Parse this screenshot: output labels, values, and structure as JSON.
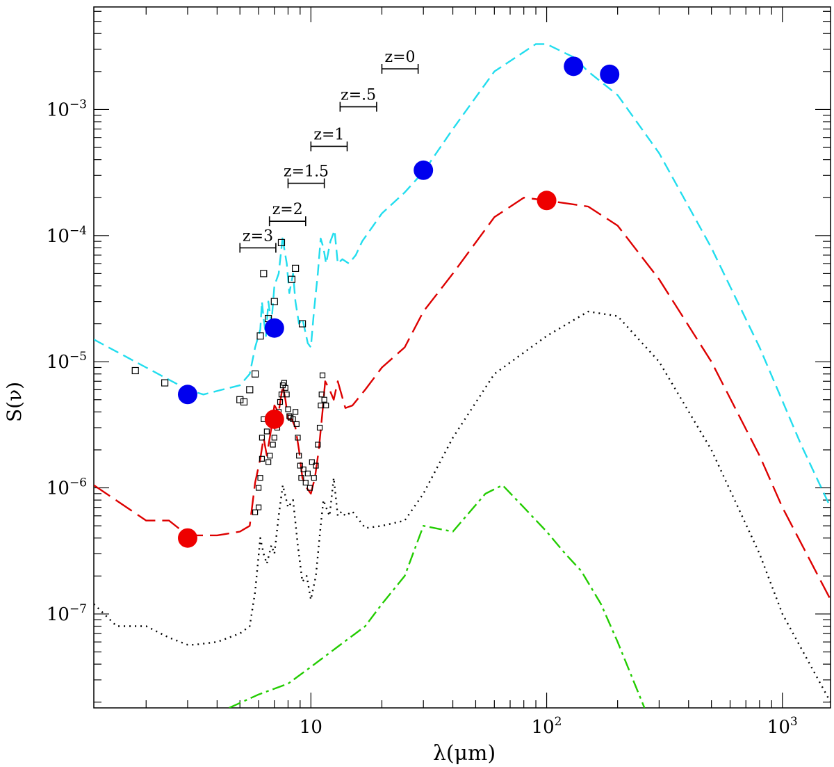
{
  "chart_data": {
    "type": "line",
    "x_scale": "log",
    "y_scale": "log",
    "xlim": [
      1.2,
      1600
    ],
    "ylim": [
      1.8e-08,
      0.0065
    ],
    "xlabel": "λ(μm)",
    "ylabel": "S(ν)",
    "x_ticks": [
      {
        "value": 10,
        "base": "10",
        "exp": ""
      },
      {
        "value": 100,
        "base": "10",
        "exp": "2"
      },
      {
        "value": 1000,
        "base": "10",
        "exp": "3"
      }
    ],
    "y_ticks": [
      {
        "value": 1e-07,
        "base": "10",
        "exp": "−7"
      },
      {
        "value": 1e-06,
        "base": "10",
        "exp": "−6"
      },
      {
        "value": 1e-05,
        "base": "10",
        "exp": "−5"
      },
      {
        "value": 0.0001,
        "base": "10",
        "exp": "−4"
      },
      {
        "value": 0.001,
        "base": "10",
        "exp": "−3"
      }
    ],
    "series": [
      {
        "name": "cyan-dashed-model",
        "color": "#22ddee",
        "dash": "16,8",
        "x": [
          1.2,
          2,
          3,
          3.5,
          4.2,
          5,
          5.5,
          5.8,
          6.1,
          6.2,
          6.3,
          6.45,
          6.6,
          6.8,
          7.0,
          7.3,
          7.6,
          7.7,
          7.9,
          8.1,
          8.4,
          8.6,
          8.9,
          9.2,
          9.7,
          10.0,
          10.3,
          10.7,
          11.0,
          11.3,
          11.6,
          12.1,
          12.6,
          13.0,
          13.6,
          14.5,
          15.5,
          16.5,
          20,
          25,
          30,
          40,
          60,
          90,
          100,
          130,
          150,
          200,
          300,
          500,
          800,
          1200,
          1600
        ],
        "values": [
          1.5e-05,
          9e-06,
          6e-06,
          5.5e-06,
          6e-06,
          6.5e-06,
          8e-06,
          1.3e-05,
          1.8e-05,
          3e-05,
          2.2e-05,
          1.6e-05,
          3e-05,
          2e-05,
          4e-05,
          5e-05,
          0.0001,
          8e-05,
          6e-05,
          3.5e-05,
          5e-05,
          3e-05,
          2e-05,
          2.2e-05,
          1.4e-05,
          1.3e-05,
          2.5e-05,
          5e-05,
          9.5e-05,
          8e-05,
          6e-05,
          9e-05,
          0.00011,
          6e-05,
          6.5e-05,
          6e-05,
          7e-05,
          9e-05,
          0.00015,
          0.00022,
          0.00032,
          0.0007,
          0.002,
          0.0033,
          0.0033,
          0.0026,
          0.002,
          0.0013,
          0.00045,
          8e-05,
          1.3e-05,
          2.2e-06,
          7e-07
        ]
      },
      {
        "name": "red-long-dash-model",
        "color": "#dd0000",
        "dash": "28,10",
        "x": [
          1.2,
          2,
          2.5,
          3,
          4,
          5,
          5.5,
          5.8,
          6.1,
          6.3,
          6.5,
          6.8,
          7.0,
          7.3,
          7.6,
          7.8,
          8.0,
          8.3,
          8.6,
          8.9,
          9.2,
          9.6,
          10.0,
          10.4,
          10.8,
          11.2,
          11.5,
          12.0,
          12.5,
          13.0,
          14,
          15,
          17,
          20,
          25,
          30,
          40,
          60,
          80,
          100,
          150,
          200,
          300,
          500,
          800,
          1000,
          1600
        ],
        "values": [
          1.05e-06,
          5.5e-07,
          5.5e-07,
          4.2e-07,
          4.2e-07,
          4.5e-07,
          5e-07,
          1.1e-06,
          1.7e-06,
          2.5e-06,
          1.8e-06,
          3e-06,
          4.5e-06,
          4e-06,
          6.5e-06,
          5e-06,
          3.5e-06,
          3.5e-06,
          3e-06,
          2e-06,
          1.2e-06,
          1e-06,
          9e-07,
          1.2e-06,
          2e-06,
          4e-06,
          7e-06,
          6e-06,
          5e-06,
          7e-06,
          4.3e-06,
          4.5e-06,
          6e-06,
          9e-06,
          1.3e-05,
          2.5e-05,
          5e-05,
          0.00014,
          0.0002,
          0.00019,
          0.00017,
          0.00012,
          4.5e-05,
          1e-05,
          1.8e-06,
          7e-07,
          1.3e-07
        ]
      },
      {
        "name": "black-dotted-model",
        "color": "#000000",
        "dash": "2,6",
        "x": [
          1.2,
          1.5,
          2,
          2.5,
          3,
          3.2,
          4,
          5,
          5.5,
          5.8,
          6.1,
          6.3,
          6.5,
          6.8,
          7.0,
          7.3,
          7.6,
          8.0,
          8.4,
          8.8,
          9.2,
          9.6,
          10.0,
          10.5,
          11.0,
          11.3,
          11.6,
          12.0,
          12.5,
          13,
          13.5,
          14,
          15,
          17,
          20,
          25,
          30,
          40,
          60,
          100,
          150,
          200,
          300,
          500,
          800,
          1000,
          1600
        ],
        "values": [
          1.2e-07,
          8e-08,
          8e-08,
          6.5e-08,
          5.7e-08,
          5.7e-08,
          6e-08,
          7e-08,
          8e-08,
          1.5e-07,
          4e-07,
          3e-07,
          2.5e-07,
          3.5e-07,
          3e-07,
          6e-07,
          1.05e-06,
          7e-07,
          8e-07,
          3.5e-07,
          1.8e-07,
          2e-07,
          1.3e-07,
          2e-07,
          5e-07,
          8e-07,
          7e-07,
          6e-07,
          1.2e-06,
          6e-07,
          6.5e-07,
          6e-07,
          6.5e-07,
          4.8e-07,
          5e-07,
          5.5e-07,
          9e-07,
          2.5e-06,
          8e-06,
          1.6e-05,
          2.5e-05,
          2.3e-05,
          1e-05,
          2e-06,
          3e-07,
          1e-07,
          2e-08
        ]
      },
      {
        "name": "green-dash-dot-model",
        "color": "#22cc00",
        "dash": "18,6,4,6",
        "x": [
          4.5,
          6,
          8,
          10,
          13,
          17,
          20,
          25,
          30,
          40,
          55,
          65,
          80,
          100,
          120,
          140,
          170,
          200,
          260
        ],
        "values": [
          1.8e-08,
          2.3e-08,
          2.8e-08,
          3.8e-08,
          5.5e-08,
          8e-08,
          1.2e-07,
          2e-07,
          5e-07,
          4.5e-07,
          9e-07,
          1.05e-06,
          7e-07,
          4.5e-07,
          3e-07,
          2.2e-07,
          1.2e-07,
          6e-08,
          1.8e-08
        ]
      }
    ],
    "markers": {
      "blue_filled": {
        "color": "#0000ee",
        "points": [
          [
            3,
            5.5e-06
          ],
          [
            7,
            1.85e-05
          ],
          [
            30,
            0.00033
          ],
          [
            130,
            0.0022
          ],
          [
            185,
            0.0019
          ]
        ]
      },
      "red_filled": {
        "color": "#ee0000",
        "points": [
          [
            3,
            4e-07
          ],
          [
            7,
            3.5e-06
          ],
          [
            100,
            0.00019
          ]
        ]
      },
      "open_squares_upper": {
        "points": [
          [
            1.8,
            8.5e-06
          ],
          [
            2.4,
            6.8e-06
          ],
          [
            5,
            5e-06
          ],
          [
            5.2,
            4.8e-06
          ],
          [
            5.5,
            6e-06
          ],
          [
            5.8,
            8e-06
          ],
          [
            6.1,
            1.6e-05
          ],
          [
            6.3,
            5e-05
          ],
          [
            6.6,
            2.2e-05
          ],
          [
            7.0,
            3e-05
          ],
          [
            7.5,
            8.8e-05
          ],
          [
            8.3,
            4.5e-05
          ],
          [
            8.6,
            5.5e-05
          ],
          [
            9.2,
            2e-05
          ]
        ]
      },
      "open_squares_lower": {
        "points": [
          [
            5.8,
            6.4e-07
          ],
          [
            6.0,
            7e-07
          ],
          [
            6.0,
            1e-06
          ],
          [
            6.1,
            1.2e-06
          ],
          [
            6.2,
            1.7e-06
          ],
          [
            6.2,
            2.5e-06
          ],
          [
            6.3,
            3.5e-06
          ],
          [
            6.5,
            2.8e-06
          ],
          [
            6.6,
            1.6e-06
          ],
          [
            6.7,
            1.8e-06
          ],
          [
            6.9,
            2.2e-06
          ],
          [
            7.0,
            2.5e-06
          ],
          [
            7.2,
            3e-06
          ],
          [
            7.3,
            4e-06
          ],
          [
            7.4,
            4.8e-06
          ],
          [
            7.5,
            5.5e-06
          ],
          [
            7.6,
            6.5e-06
          ],
          [
            7.7,
            6.8e-06
          ],
          [
            7.8,
            6.2e-06
          ],
          [
            7.9,
            5.5e-06
          ],
          [
            8.0,
            4.2e-06
          ],
          [
            8.1,
            3.7e-06
          ],
          [
            8.2,
            3.6e-06
          ],
          [
            8.4,
            3.5e-06
          ],
          [
            8.6,
            4e-06
          ],
          [
            8.7,
            3.2e-06
          ],
          [
            8.8,
            2.5e-06
          ],
          [
            8.9,
            1.8e-06
          ],
          [
            9.0,
            1.5e-06
          ],
          [
            9.1,
            1.2e-06
          ],
          [
            9.3,
            1.4e-06
          ],
          [
            9.5,
            1.1e-06
          ],
          [
            9.7,
            1.3e-06
          ],
          [
            9.9,
            1e-06
          ],
          [
            10.1,
            1.6e-06
          ],
          [
            10.3,
            1.2e-06
          ],
          [
            10.5,
            1.5e-06
          ],
          [
            10.7,
            2.2e-06
          ],
          [
            10.9,
            3e-06
          ],
          [
            11.0,
            4.5e-06
          ],
          [
            11.1,
            5.5e-06
          ],
          [
            11.2,
            7.8e-06
          ],
          [
            11.4,
            5e-06
          ],
          [
            11.6,
            4.5e-06
          ]
        ]
      }
    },
    "redshift_bars": [
      {
        "label": "z=0",
        "lo": 20,
        "hi": 28.5,
        "y": 0.0021
      },
      {
        "label": "z=.5",
        "lo": 13.3,
        "hi": 19,
        "y": 0.00105
      },
      {
        "label": "z=1",
        "lo": 10,
        "hi": 14.25,
        "y": 0.00051
      },
      {
        "label": "z=1.5",
        "lo": 8,
        "hi": 11.4,
        "y": 0.00026
      },
      {
        "label": "z=2",
        "lo": 6.67,
        "hi": 9.5,
        "y": 0.00013
      },
      {
        "label": "z=3",
        "lo": 5,
        "hi": 7.1,
        "y": 8e-05
      }
    ]
  }
}
